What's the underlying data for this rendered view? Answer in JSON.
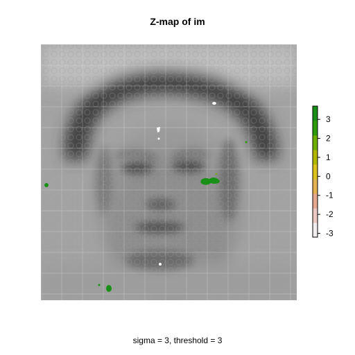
{
  "chart_data": {
    "type": "heatmap",
    "title": "Z-map of im",
    "subtitle": "sigma = 3, threshold = 3",
    "colorbar": {
      "min": -3.2,
      "max": 3.7,
      "ticks": [
        3,
        2,
        1,
        0,
        -1,
        -2,
        -3
      ],
      "tick_labels": [
        "3",
        "2",
        "1",
        "0",
        "-1",
        "-2",
        "-3"
      ],
      "colors": [
        "#f2eef0",
        "#ebc9c0",
        "#e6a890",
        "#e2b34e",
        "#dcc21c",
        "#b2b800",
        "#6eae00",
        "#2e9b0a",
        "#189018"
      ],
      "background_image_colors": [
        "#3a3a3a",
        "#bdbdbd"
      ]
    }
  }
}
